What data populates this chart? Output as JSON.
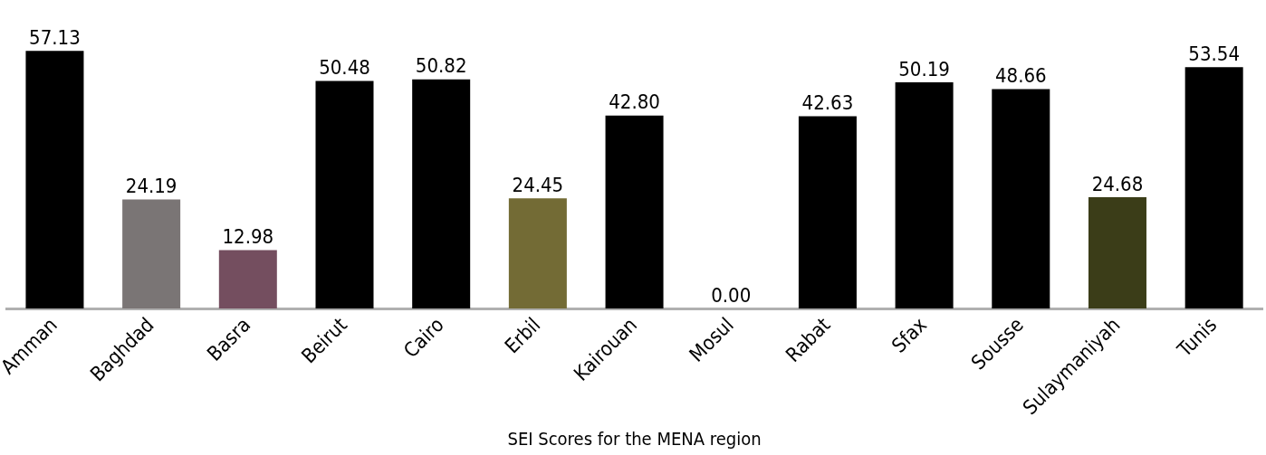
{
  "chart_data": {
    "type": "bar",
    "xlabel": "SEI Scores for the MENA region",
    "categories": [
      "Amman",
      "Baghdad",
      "Basra",
      "Beirut",
      "Cairo",
      "Erbil",
      "Kairouan",
      "Mosul",
      "Rabat",
      "Sfax",
      "Sousse",
      "Sulaymaniyah",
      "Tunis"
    ],
    "values": [
      57.13,
      24.19,
      12.98,
      50.48,
      50.82,
      24.45,
      42.8,
      0.0,
      42.63,
      50.19,
      48.66,
      24.68,
      53.54
    ],
    "colors": [
      "#000000",
      "#7a7575",
      "#744e5f",
      "#000000",
      "#000000",
      "#736b35",
      "#000000",
      "#000000",
      "#000000",
      "#000000",
      "#000000",
      "#3b3d18",
      "#000000"
    ],
    "value_labels": [
      "57.13",
      "24.19",
      "12.98",
      "50.48",
      "50.82",
      "24.45",
      "42.80",
      "0.00",
      "42.63",
      "50.19",
      "48.66",
      "24.68",
      "53.54"
    ],
    "tick_labels": "x",
    "grid": false,
    "legend": false
  }
}
